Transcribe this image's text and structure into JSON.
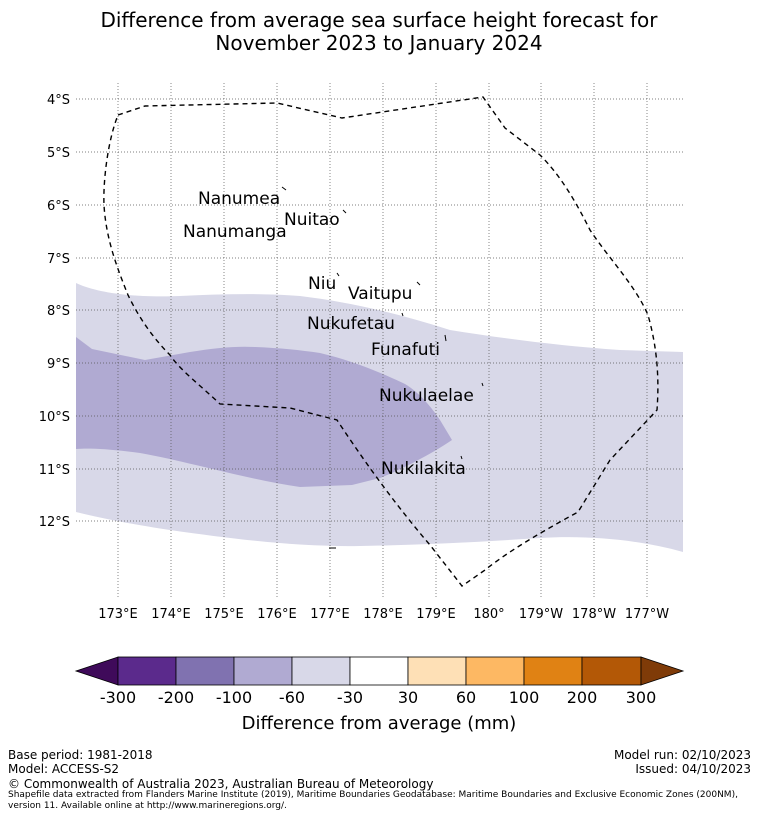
{
  "title": {
    "line1": "Difference from average sea surface height forecast for",
    "line2": "November 2023 to January 2024"
  },
  "map": {
    "lat_labels": [
      "4°S",
      "5°S",
      "6°S",
      "7°S",
      "8°S",
      "9°S",
      "10°S",
      "11°S",
      "12°S"
    ],
    "lon_labels": [
      "173°E",
      "174°E",
      "175°E",
      "176°E",
      "177°E",
      "178°E",
      "179°E",
      "180°",
      "179°W",
      "178°W",
      "177°W"
    ],
    "islands": [
      "Nanumea",
      "Nuitao",
      "Nanumanga",
      "Niu",
      "Vaitupu",
      "Nukufetau",
      "Funafuti",
      "Nukulaelae",
      "Nukilakita"
    ],
    "layers": {
      "eez_boundary": "dashed",
      "band_-60_to_-30": "#d8d8e8",
      "band_-100_to_-60": "#b0aad2"
    }
  },
  "colorbar": {
    "title": "Difference from average (mm)",
    "ticks": [
      "-300",
      "-200",
      "-100",
      "-60",
      "-30",
      "30",
      "60",
      "100",
      "200",
      "300"
    ],
    "colors": [
      "#3f0a5a",
      "#5b2a8c",
      "#8072b0",
      "#b0aad2",
      "#d8d8e8",
      "#ffffff",
      "#fee0b6",
      "#fdb863",
      "#e08214",
      "#b35806",
      "#7f3b08"
    ]
  },
  "footer": {
    "base_period": "Base period: 1981-2018",
    "model": "Model: ACCESS-S2",
    "model_run": "Model run: 02/10/2023",
    "issued": "Issued: 04/10/2023",
    "copyright": "© Commonwealth of Australia 2023, Australian Bureau of Meteorology",
    "shapefile_line1": "Shapefile data extracted from Flanders Marine Institute (2019), Maritime Boundaries Geodatabase: Maritime Boundaries and Exclusive Economic Zones (200NM),",
    "shapefile_line2": "version 11. Available online at http://www.marineregions.org/."
  }
}
